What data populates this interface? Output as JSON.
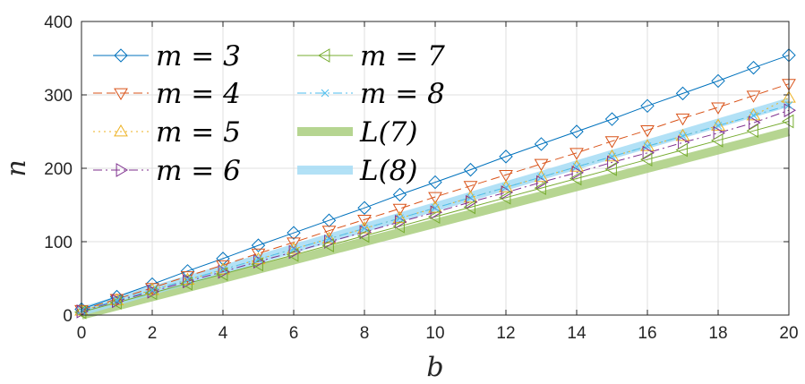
{
  "chart_data": {
    "type": "line",
    "xlabel": "b",
    "ylabel": "n",
    "xlim": [
      0,
      20
    ],
    "ylim": [
      0,
      400
    ],
    "xticks": [
      0,
      2,
      4,
      6,
      8,
      10,
      12,
      14,
      16,
      18,
      20
    ],
    "yticks": [
      0,
      100,
      200,
      300,
      400
    ],
    "grid": true,
    "legend_position": "top-left",
    "x": [
      0,
      1,
      2,
      3,
      4,
      5,
      6,
      7,
      8,
      9,
      10,
      11,
      12,
      13,
      14,
      15,
      16,
      17,
      18,
      19,
      20
    ],
    "series": [
      {
        "name": "m = 3",
        "color": "#0072BD",
        "marker": "diamond",
        "dash": "solid",
        "values": [
          8,
          25,
          42,
          60,
          77,
          95,
          112,
          129,
          146,
          164,
          181,
          198,
          216,
          233,
          250,
          267,
          285,
          302,
          319,
          337,
          354
        ]
      },
      {
        "name": "m = 4",
        "color": "#D95319",
        "marker": "triangle-down",
        "dash": "dashed",
        "values": [
          7,
          22,
          37,
          53,
          68,
          84,
          99,
          115,
          130,
          145,
          161,
          176,
          191,
          206,
          221,
          237,
          252,
          268,
          283,
          299,
          315
        ]
      },
      {
        "name": "m = 5",
        "color": "#EDB120",
        "marker": "triangle-up",
        "dash": "dotted",
        "values": [
          6,
          20,
          34,
          48,
          62,
          76,
          90,
          104,
          118,
          132,
          146,
          160,
          174,
          188,
          202,
          216,
          230,
          244,
          258,
          272,
          296
        ]
      },
      {
        "name": "m = 6",
        "color": "#7E2F8E",
        "marker": "triangle-right",
        "dash": "dashdot",
        "values": [
          5,
          19,
          32,
          46,
          59,
          73,
          86,
          100,
          113,
          127,
          140,
          154,
          167,
          181,
          194,
          208,
          221,
          235,
          248,
          262,
          279
        ]
      },
      {
        "name": "m = 7",
        "color": "#77AC30",
        "marker": "triangle-left",
        "dash": "solid",
        "values": [
          4,
          17,
          30,
          43,
          56,
          69,
          82,
          95,
          108,
          121,
          134,
          147,
          160,
          173,
          186,
          199,
          212,
          225,
          238,
          251,
          264
        ]
      },
      {
        "name": "m = 8",
        "color": "#4DBEEE",
        "marker": "x",
        "dash": "dashdot",
        "values": [
          6,
          20,
          34,
          48,
          62,
          76,
          90,
          104,
          118,
          132,
          146,
          160,
          174,
          188,
          202,
          216,
          230,
          244,
          258,
          272,
          286
        ]
      },
      {
        "name": "L(7)",
        "color": "#A9CE7E",
        "marker": "none",
        "dash": "thick",
        "values": [
          0,
          12.5,
          25,
          37.5,
          50,
          62.5,
          75,
          87.5,
          100,
          112.5,
          125,
          137.5,
          150,
          162.5,
          175,
          187.5,
          200,
          212.5,
          225,
          237.5,
          250
        ]
      },
      {
        "name": "L(8)",
        "color": "#A5DCF4",
        "marker": "none",
        "dash": "thick",
        "values": [
          5,
          19.25,
          33.5,
          47.75,
          62,
          76.25,
          90.5,
          104.75,
          119,
          133.25,
          147.5,
          161.75,
          176,
          190.25,
          204.5,
          218.75,
          233,
          247.25,
          261.5,
          275.75,
          290
        ]
      }
    ]
  }
}
